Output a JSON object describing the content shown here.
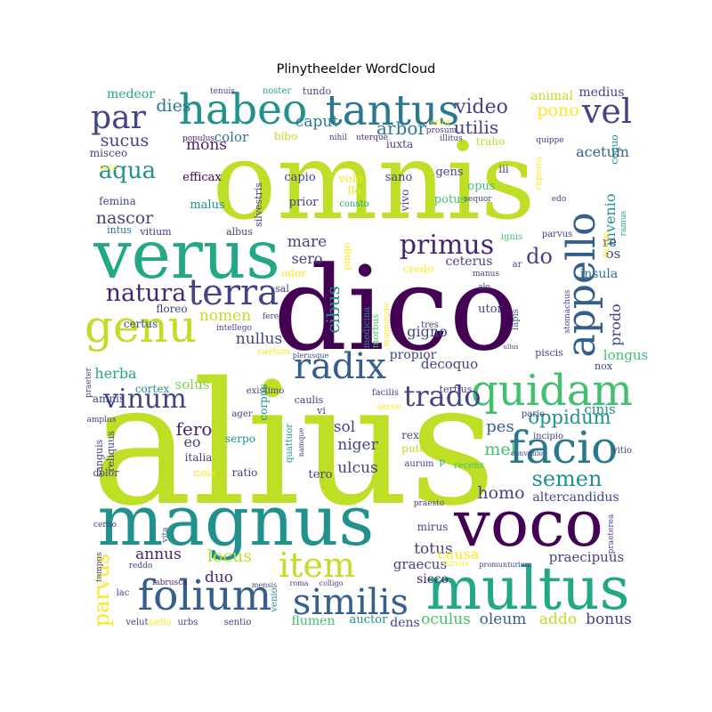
{
  "chart_data": {
    "type": "wordcloud",
    "title": "Plinytheelder WordCloud",
    "palette": {
      "v1": "#440154",
      "v2": "#482475",
      "v3": "#414487",
      "v4": "#355f8d",
      "v5": "#2a788e",
      "v6": "#21918c",
      "v7": "#22a884",
      "v8": "#44bf70",
      "v9": "#7ad151",
      "v10": "#bddf26",
      "v11": "#fde725"
    },
    "words": [
      {
        "text": "alius",
        "weight": 100,
        "color": "v10"
      },
      {
        "text": "omnis",
        "weight": 92,
        "color": "v10"
      },
      {
        "text": "dico",
        "weight": 90,
        "color": "v1"
      },
      {
        "text": "magnus",
        "weight": 60,
        "color": "v6"
      },
      {
        "text": "verus",
        "weight": 58,
        "color": "v7"
      },
      {
        "text": "voco",
        "weight": 55,
        "color": "v1"
      },
      {
        "text": "multus",
        "weight": 52,
        "color": "v7"
      },
      {
        "text": "quidam",
        "weight": 42,
        "color": "v8"
      },
      {
        "text": "facio",
        "weight": 40,
        "color": "v5"
      },
      {
        "text": "genu",
        "weight": 38,
        "color": "v10"
      },
      {
        "text": "folium",
        "weight": 36,
        "color": "v4"
      },
      {
        "text": "tantus",
        "weight": 34,
        "color": "v5"
      },
      {
        "text": "habeo",
        "weight": 34,
        "color": "v6"
      },
      {
        "text": "similis",
        "weight": 32,
        "color": "v4"
      },
      {
        "text": "item",
        "weight": 30,
        "color": "v10"
      },
      {
        "text": "appello",
        "weight": 30,
        "color": "v4"
      },
      {
        "text": "terra",
        "weight": 28,
        "color": "v3"
      },
      {
        "text": "radix",
        "weight": 28,
        "color": "v4"
      },
      {
        "text": "par",
        "weight": 28,
        "color": "v3"
      },
      {
        "text": "vel",
        "weight": 28,
        "color": "v3"
      },
      {
        "text": "primus",
        "weight": 26,
        "color": "v2"
      },
      {
        "text": "vinum",
        "weight": 24,
        "color": "v3"
      },
      {
        "text": "trado",
        "weight": 24,
        "color": "v3"
      },
      {
        "text": "natura",
        "weight": 22,
        "color": "v2"
      },
      {
        "text": "aqua",
        "weight": 22,
        "color": "v6"
      },
      {
        "text": "oppidum",
        "weight": 20,
        "color": "v6"
      },
      {
        "text": "semen",
        "weight": 20,
        "color": "v6"
      },
      {
        "text": "parvus",
        "weight": 20,
        "color": "v11"
      },
      {
        "text": "video",
        "weight": 19,
        "color": "v3"
      },
      {
        "text": "do",
        "weight": 19,
        "color": "v3"
      },
      {
        "text": "dies",
        "weight": 17,
        "color": "v5"
      },
      {
        "text": "fero",
        "weight": 17,
        "color": "v2"
      },
      {
        "text": "homo",
        "weight": 17,
        "color": "v3"
      },
      {
        "text": "nascor",
        "weight": 17,
        "color": "v3"
      },
      {
        "text": "sucus",
        "weight": 17,
        "color": "v3"
      },
      {
        "text": "mare",
        "weight": 15,
        "color": "v3"
      },
      {
        "text": "nullus",
        "weight": 15,
        "color": "v3"
      },
      {
        "text": "nomen",
        "weight": 15,
        "color": "v10"
      },
      {
        "text": "sero",
        "weight": 15,
        "color": "v3"
      },
      {
        "text": "mel",
        "weight": 16,
        "color": "v8"
      },
      {
        "text": "pes",
        "weight": 16,
        "color": "v4"
      },
      {
        "text": "utilis",
        "weight": 16,
        "color": "v3"
      },
      {
        "text": "arbor",
        "weight": 16,
        "color": "v5"
      },
      {
        "text": "cibus",
        "weight": 16,
        "color": "v6"
      },
      {
        "text": "prodo",
        "weight": 14,
        "color": "v3"
      },
      {
        "text": "pono",
        "weight": 16,
        "color": "v11"
      },
      {
        "text": "invenio",
        "weight": 14,
        "color": "v6"
      },
      {
        "text": "locus",
        "weight": 16,
        "color": "v10"
      },
      {
        "text": "annus",
        "weight": 15,
        "color": "v2"
      },
      {
        "text": "duo",
        "weight": 15,
        "color": "v2"
      },
      {
        "text": "totus",
        "weight": 15,
        "color": "v3"
      },
      {
        "text": "oleum",
        "weight": 15,
        "color": "v4"
      },
      {
        "text": "oculus",
        "weight": 15,
        "color": "v8"
      },
      {
        "text": "bonus",
        "weight": 15,
        "color": "v3"
      },
      {
        "text": "addo",
        "weight": 15,
        "color": "v10"
      },
      {
        "text": "causa",
        "weight": 14,
        "color": "v11"
      },
      {
        "text": "praecipuus",
        "weight": 13,
        "color": "v3"
      },
      {
        "text": "graecus",
        "weight": 13,
        "color": "v3"
      },
      {
        "text": "sicco",
        "weight": 13,
        "color": "v2"
      },
      {
        "text": "herba",
        "weight": 14,
        "color": "v7"
      },
      {
        "text": "solus",
        "weight": 14,
        "color": "v9"
      },
      {
        "text": "niger",
        "weight": 14,
        "color": "v3"
      },
      {
        "text": "sol",
        "weight": 14,
        "color": "v3"
      },
      {
        "text": "ulcus",
        "weight": 14,
        "color": "v3"
      },
      {
        "text": "gigno",
        "weight": 14,
        "color": "v3"
      },
      {
        "text": "decoquo",
        "weight": 14,
        "color": "v3"
      },
      {
        "text": "propior",
        "weight": 13,
        "color": "v3"
      },
      {
        "text": "cinis",
        "weight": 14,
        "color": "v6"
      },
      {
        "text": "longus",
        "weight": 13,
        "color": "v8"
      },
      {
        "text": "mons",
        "weight": 14,
        "color": "v2"
      },
      {
        "text": "color",
        "weight": 13,
        "color": "v5"
      },
      {
        "text": "caput",
        "weight": 14,
        "color": "v5"
      },
      {
        "text": "acetum",
        "weight": 13,
        "color": "v4"
      },
      {
        "text": "medius",
        "weight": 13,
        "color": "v3"
      },
      {
        "text": "animal",
        "weight": 13,
        "color": "v10"
      },
      {
        "text": "medeor",
        "weight": 12,
        "color": "v7"
      },
      {
        "text": "efficax",
        "weight": 12,
        "color": "v1"
      },
      {
        "text": "malus",
        "weight": 12,
        "color": "v6"
      },
      {
        "text": "femina",
        "weight": 11,
        "color": "v3"
      },
      {
        "text": "misceo",
        "weight": 11,
        "color": "v3"
      },
      {
        "text": "capio",
        "weight": 12,
        "color": "v3"
      },
      {
        "text": "prior",
        "weight": 12,
        "color": "v3"
      },
      {
        "text": "volo",
        "weight": 12,
        "color": "v11"
      },
      {
        "text": "sano",
        "weight": 12,
        "color": "v3"
      },
      {
        "text": "gens",
        "weight": 12,
        "color": "v3"
      },
      {
        "text": "opus",
        "weight": 12,
        "color": "v8"
      },
      {
        "text": "potus",
        "weight": 12,
        "color": "v8"
      },
      {
        "text": "vivo",
        "weight": 11,
        "color": "v3"
      },
      {
        "text": "iii",
        "weight": 11,
        "color": "v3"
      },
      {
        "text": "coquo",
        "weight": 10,
        "color": "v6"
      },
      {
        "text": "reperio",
        "weight": 10,
        "color": "v11"
      },
      {
        "text": "iuxta",
        "weight": 11,
        "color": "v3"
      },
      {
        "text": "bibo",
        "weight": 11,
        "color": "v10"
      },
      {
        "text": "traho",
        "weight": 11,
        "color": "v10"
      },
      {
        "text": "flo",
        "weight": 11,
        "color": "v11"
      },
      {
        "text": "consto",
        "weight": 10,
        "color": "v7"
      },
      {
        "text": "sequor",
        "weight": 9,
        "color": "v3"
      },
      {
        "text": "edo",
        "weight": 9,
        "color": "v3"
      },
      {
        "text": "silvestris",
        "weight": 10,
        "color": "v3"
      },
      {
        "text": "intus",
        "weight": 10,
        "color": "v5"
      },
      {
        "text": "vitium",
        "weight": 10,
        "color": "v3"
      },
      {
        "text": "albus",
        "weight": 10,
        "color": "v3"
      },
      {
        "text": "ignis",
        "weight": 10,
        "color": "v8"
      },
      {
        "text": "parvus",
        "weight": 10,
        "color": "v3"
      },
      {
        "text": "re",
        "weight": 12,
        "color": "v3"
      },
      {
        "text": "os",
        "weight": 12,
        "color": "v3"
      },
      {
        "text": "ar",
        "weight": 10,
        "color": "v3"
      },
      {
        "text": "insula",
        "weight": 12,
        "color": "v5"
      },
      {
        "text": "pingo",
        "weight": 10,
        "color": "v11"
      },
      {
        "text": "odor",
        "weight": 11,
        "color": "v11"
      },
      {
        "text": "credo",
        "weight": 11,
        "color": "v11"
      },
      {
        "text": "ceterus",
        "weight": 12,
        "color": "v3"
      },
      {
        "text": "manus",
        "weight": 9,
        "color": "v3"
      },
      {
        "text": "sal",
        "weight": 10,
        "color": "v3"
      },
      {
        "text": "alo",
        "weight": 9,
        "color": "v3"
      },
      {
        "text": "certus",
        "weight": 10,
        "color": "v3"
      },
      {
        "text": "floreo",
        "weight": 11,
        "color": "v3"
      },
      {
        "text": "fere",
        "weight": 9,
        "color": "v3"
      },
      {
        "text": "medicina",
        "weight": 9,
        "color": "v6"
      },
      {
        "text": "morbus",
        "weight": 9,
        "color": "v8"
      },
      {
        "text": "magnitudo",
        "weight": 8,
        "color": "v11"
      },
      {
        "text": "utor",
        "weight": 11,
        "color": "v3"
      },
      {
        "text": "tres",
        "weight": 9,
        "color": "v3"
      },
      {
        "text": "lapis",
        "weight": 9,
        "color": "v4"
      },
      {
        "text": "stomachus",
        "weight": 8,
        "color": "v3"
      },
      {
        "text": "intellego",
        "weight": 9,
        "color": "v3"
      },
      {
        "text": "caelum",
        "weight": 9,
        "color": "v11"
      },
      {
        "text": "plerusque",
        "weight": 8,
        "color": "v3"
      },
      {
        "text": "ullus",
        "weight": 7,
        "color": "v3"
      },
      {
        "text": "piscis",
        "weight": 10,
        "color": "v3"
      },
      {
        "text": "nox",
        "weight": 10,
        "color": "v3"
      },
      {
        "text": "praeter",
        "weight": 8,
        "color": "v3"
      },
      {
        "text": "cortex",
        "weight": 11,
        "color": "v6"
      },
      {
        "text": "amnis",
        "weight": 11,
        "color": "v3"
      },
      {
        "text": "amplus",
        "weight": 9,
        "color": "v3"
      },
      {
        "text": "existimo",
        "weight": 10,
        "color": "v3"
      },
      {
        "text": "caulis",
        "weight": 10,
        "color": "v3"
      },
      {
        "text": "facilis",
        "weight": 9,
        "color": "v3"
      },
      {
        "text": "tertius",
        "weight": 10,
        "color": "v3"
      },
      {
        "text": "ager",
        "weight": 9,
        "color": "v3"
      },
      {
        "text": "vi",
        "weight": 10,
        "color": "v3"
      },
      {
        "text": "servo",
        "weight": 9,
        "color": "v11"
      },
      {
        "text": "corpus",
        "weight": 11,
        "color": "v6"
      },
      {
        "text": "serpo",
        "weight": 11,
        "color": "v6"
      },
      {
        "text": "eo",
        "weight": 14,
        "color": "v3"
      },
      {
        "text": "italia",
        "weight": 11,
        "color": "v3"
      },
      {
        "text": "usus",
        "weight": 10,
        "color": "v11"
      },
      {
        "text": "ratio",
        "weight": 11,
        "color": "v3"
      },
      {
        "text": "quattuor",
        "weight": 9,
        "color": "v6"
      },
      {
        "text": "namque",
        "weight": 8,
        "color": "v3"
      },
      {
        "text": "tero",
        "weight": 11,
        "color": "v3"
      },
      {
        "text": "rex",
        "weight": 10,
        "color": "v3"
      },
      {
        "text": "puto",
        "weight": 10,
        "color": "v10"
      },
      {
        "text": "aurum",
        "weight": 9,
        "color": "v3"
      },
      {
        "text": "p",
        "weight": 9,
        "color": "v7"
      },
      {
        "text": "pario",
        "weight": 9,
        "color": "v3"
      },
      {
        "text": "incipio",
        "weight": 9,
        "color": "v3"
      },
      {
        "text": "recens",
        "weight": 9,
        "color": "v8"
      },
      {
        "text": "convenio",
        "weight": 8,
        "color": "v3"
      },
      {
        "text": "vitio",
        "weight": 9,
        "color": "v3"
      },
      {
        "text": "altercandidus",
        "weight": 12,
        "color": "v3"
      },
      {
        "text": "sanguis",
        "weight": 10,
        "color": "v3"
      },
      {
        "text": "reliquus",
        "weight": 10,
        "color": "v3"
      },
      {
        "text": "dolor",
        "weight": 10,
        "color": "v3"
      },
      {
        "text": "cerno",
        "weight": 8,
        "color": "v3"
      },
      {
        "text": "vita",
        "weight": 8,
        "color": "v3"
      },
      {
        "text": "praesto",
        "weight": 8,
        "color": "v3"
      },
      {
        "text": "mirus",
        "weight": 11,
        "color": "v3"
      },
      {
        "text": "praeterea",
        "weight": 8,
        "color": "v3"
      },
      {
        "text": "tempus",
        "weight": 9,
        "color": "v3"
      },
      {
        "text": "reddo",
        "weight": 9,
        "color": "v3"
      },
      {
        "text": "labrusca",
        "weight": 8,
        "color": "v2"
      },
      {
        "text": "lac",
        "weight": 9,
        "color": "v3"
      },
      {
        "text": "velut",
        "weight": 9,
        "color": "v3"
      },
      {
        "text": "pello",
        "weight": 9,
        "color": "v11"
      },
      {
        "text": "urbs",
        "weight": 9,
        "color": "v3"
      },
      {
        "text": "sentio",
        "weight": 9,
        "color": "v3"
      },
      {
        "text": "venio",
        "weight": 9,
        "color": "v6"
      },
      {
        "text": "mensis",
        "weight": 8,
        "color": "v3"
      },
      {
        "text": "roma",
        "weight": 8,
        "color": "v3"
      },
      {
        "text": "colligo",
        "weight": 8,
        "color": "v3"
      },
      {
        "text": "flumen",
        "weight": 11,
        "color": "v8"
      },
      {
        "text": "auctor",
        "weight": 11,
        "color": "v6"
      },
      {
        "text": "dens",
        "weight": 11,
        "color": "v3"
      },
      {
        "text": "rursus",
        "weight": 8,
        "color": "v11"
      },
      {
        "text": "promunturium",
        "weight": 7,
        "color": "v3"
      },
      {
        "text": "tenuis",
        "weight": 8,
        "color": "v3"
      },
      {
        "text": "noster",
        "weight": 9,
        "color": "v7"
      },
      {
        "text": "tundo",
        "weight": 9,
        "color": "v3"
      },
      {
        "text": "populus",
        "weight": 8,
        "color": "v2"
      },
      {
        "text": "poto",
        "weight": 8,
        "color": "v11"
      },
      {
        "text": "nihil",
        "weight": 8,
        "color": "v3"
      },
      {
        "text": "uterque",
        "weight": 8,
        "color": "v2"
      },
      {
        "text": "orior",
        "weight": 8,
        "color": "v11"
      },
      {
        "text": "prosum",
        "weight": 8,
        "color": "v3"
      },
      {
        "text": "illitus",
        "weight": 8,
        "color": "v3"
      },
      {
        "text": "quippe",
        "weight": 8,
        "color": "v3"
      },
      {
        "text": "dictum",
        "weight": 8,
        "color": "v11"
      },
      {
        "text": "ramus",
        "weight": 8,
        "color": "v7"
      }
    ]
  }
}
